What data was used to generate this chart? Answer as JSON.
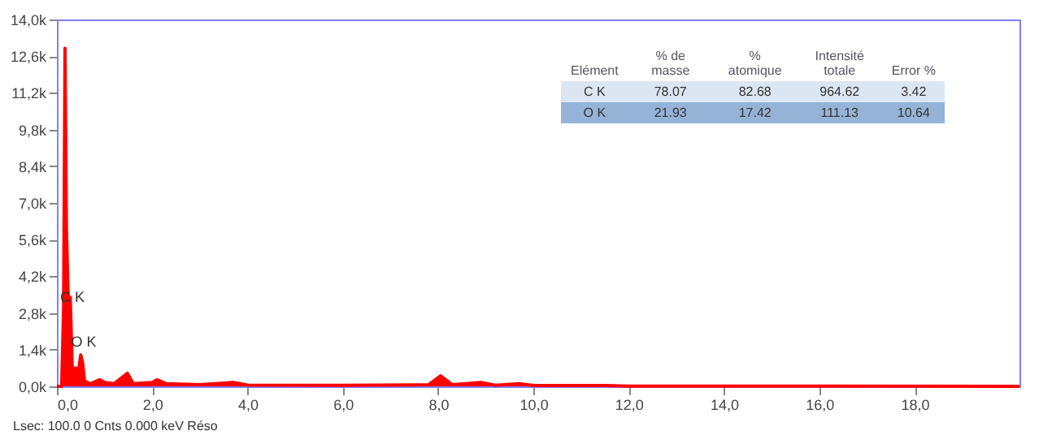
{
  "chart_data": {
    "type": "area",
    "x": [
      0,
      0.1,
      0.14,
      0.17,
      0.2,
      0.24,
      0.28,
      0.32,
      0.36,
      0.4,
      0.44,
      0.5,
      0.54,
      0.58,
      0.7,
      0.9,
      1.0,
      1.2,
      1.48,
      1.6,
      2.0,
      2.1,
      2.3,
      3.0,
      3.7,
      4.0,
      6.0,
      7.8,
      8.05,
      8.3,
      8.9,
      9.2,
      9.7,
      10.0,
      11.5,
      12.0,
      20.2
    ],
    "series": [
      {
        "color": "#ff0000",
        "values": [
          0,
          0,
          3000,
          12900,
          6000,
          3200,
          3400,
          800,
          600,
          700,
          400,
          1200,
          900,
          200,
          100,
          250,
          150,
          100,
          500,
          100,
          150,
          250,
          100,
          60,
          150,
          50,
          40,
          60,
          400,
          60,
          150,
          40,
          100,
          30,
          30,
          10,
          0
        ]
      }
    ],
    "xlim": [
      0,
      20.2
    ],
    "xticks": [
      {
        "value": 0,
        "label": "0,0"
      },
      {
        "value": 2,
        "label": "2,0"
      },
      {
        "value": 4,
        "label": "4,0"
      },
      {
        "value": 6,
        "label": "6,0"
      },
      {
        "value": 8,
        "label": "8,0"
      },
      {
        "value": 10,
        "label": "10,0"
      },
      {
        "value": 12,
        "label": "12,0"
      },
      {
        "value": 14,
        "label": "14,0"
      },
      {
        "value": 16,
        "label": "16,0"
      },
      {
        "value": 18,
        "label": "18,0"
      }
    ],
    "ylim": [
      0,
      14000
    ],
    "yticks": [
      {
        "value": 0,
        "label": "0,0k"
      },
      {
        "value": 1400,
        "label": "1,4k"
      },
      {
        "value": 2800,
        "label": "2,8k"
      },
      {
        "value": 4200,
        "label": "4,2k"
      },
      {
        "value": 5600,
        "label": "5,6k"
      },
      {
        "value": 7000,
        "label": "7,0k"
      },
      {
        "value": 8400,
        "label": "8,4k"
      },
      {
        "value": 9800,
        "label": "9,8k"
      },
      {
        "value": 11200,
        "label": "11,2k"
      },
      {
        "value": 12600,
        "label": "12,6k"
      },
      {
        "value": 14000,
        "label": "14,0k"
      }
    ],
    "grid": false,
    "annotations": [
      {
        "text": "C K",
        "x": 0.07,
        "y": 3400
      },
      {
        "text": "O K",
        "x": 0.3,
        "y": 1700
      },
      "Elément",
      "% de masse",
      "% atomique",
      "Intensité totale",
      "Error %",
      "C K",
      "78.07",
      "82.68",
      "964.62",
      "3.42",
      "O K",
      "21.93",
      "17.42",
      "111.13",
      "10.64",
      "Lsec: 100.0 0 Cnts 0.000 keV Réso"
    ]
  }
}
